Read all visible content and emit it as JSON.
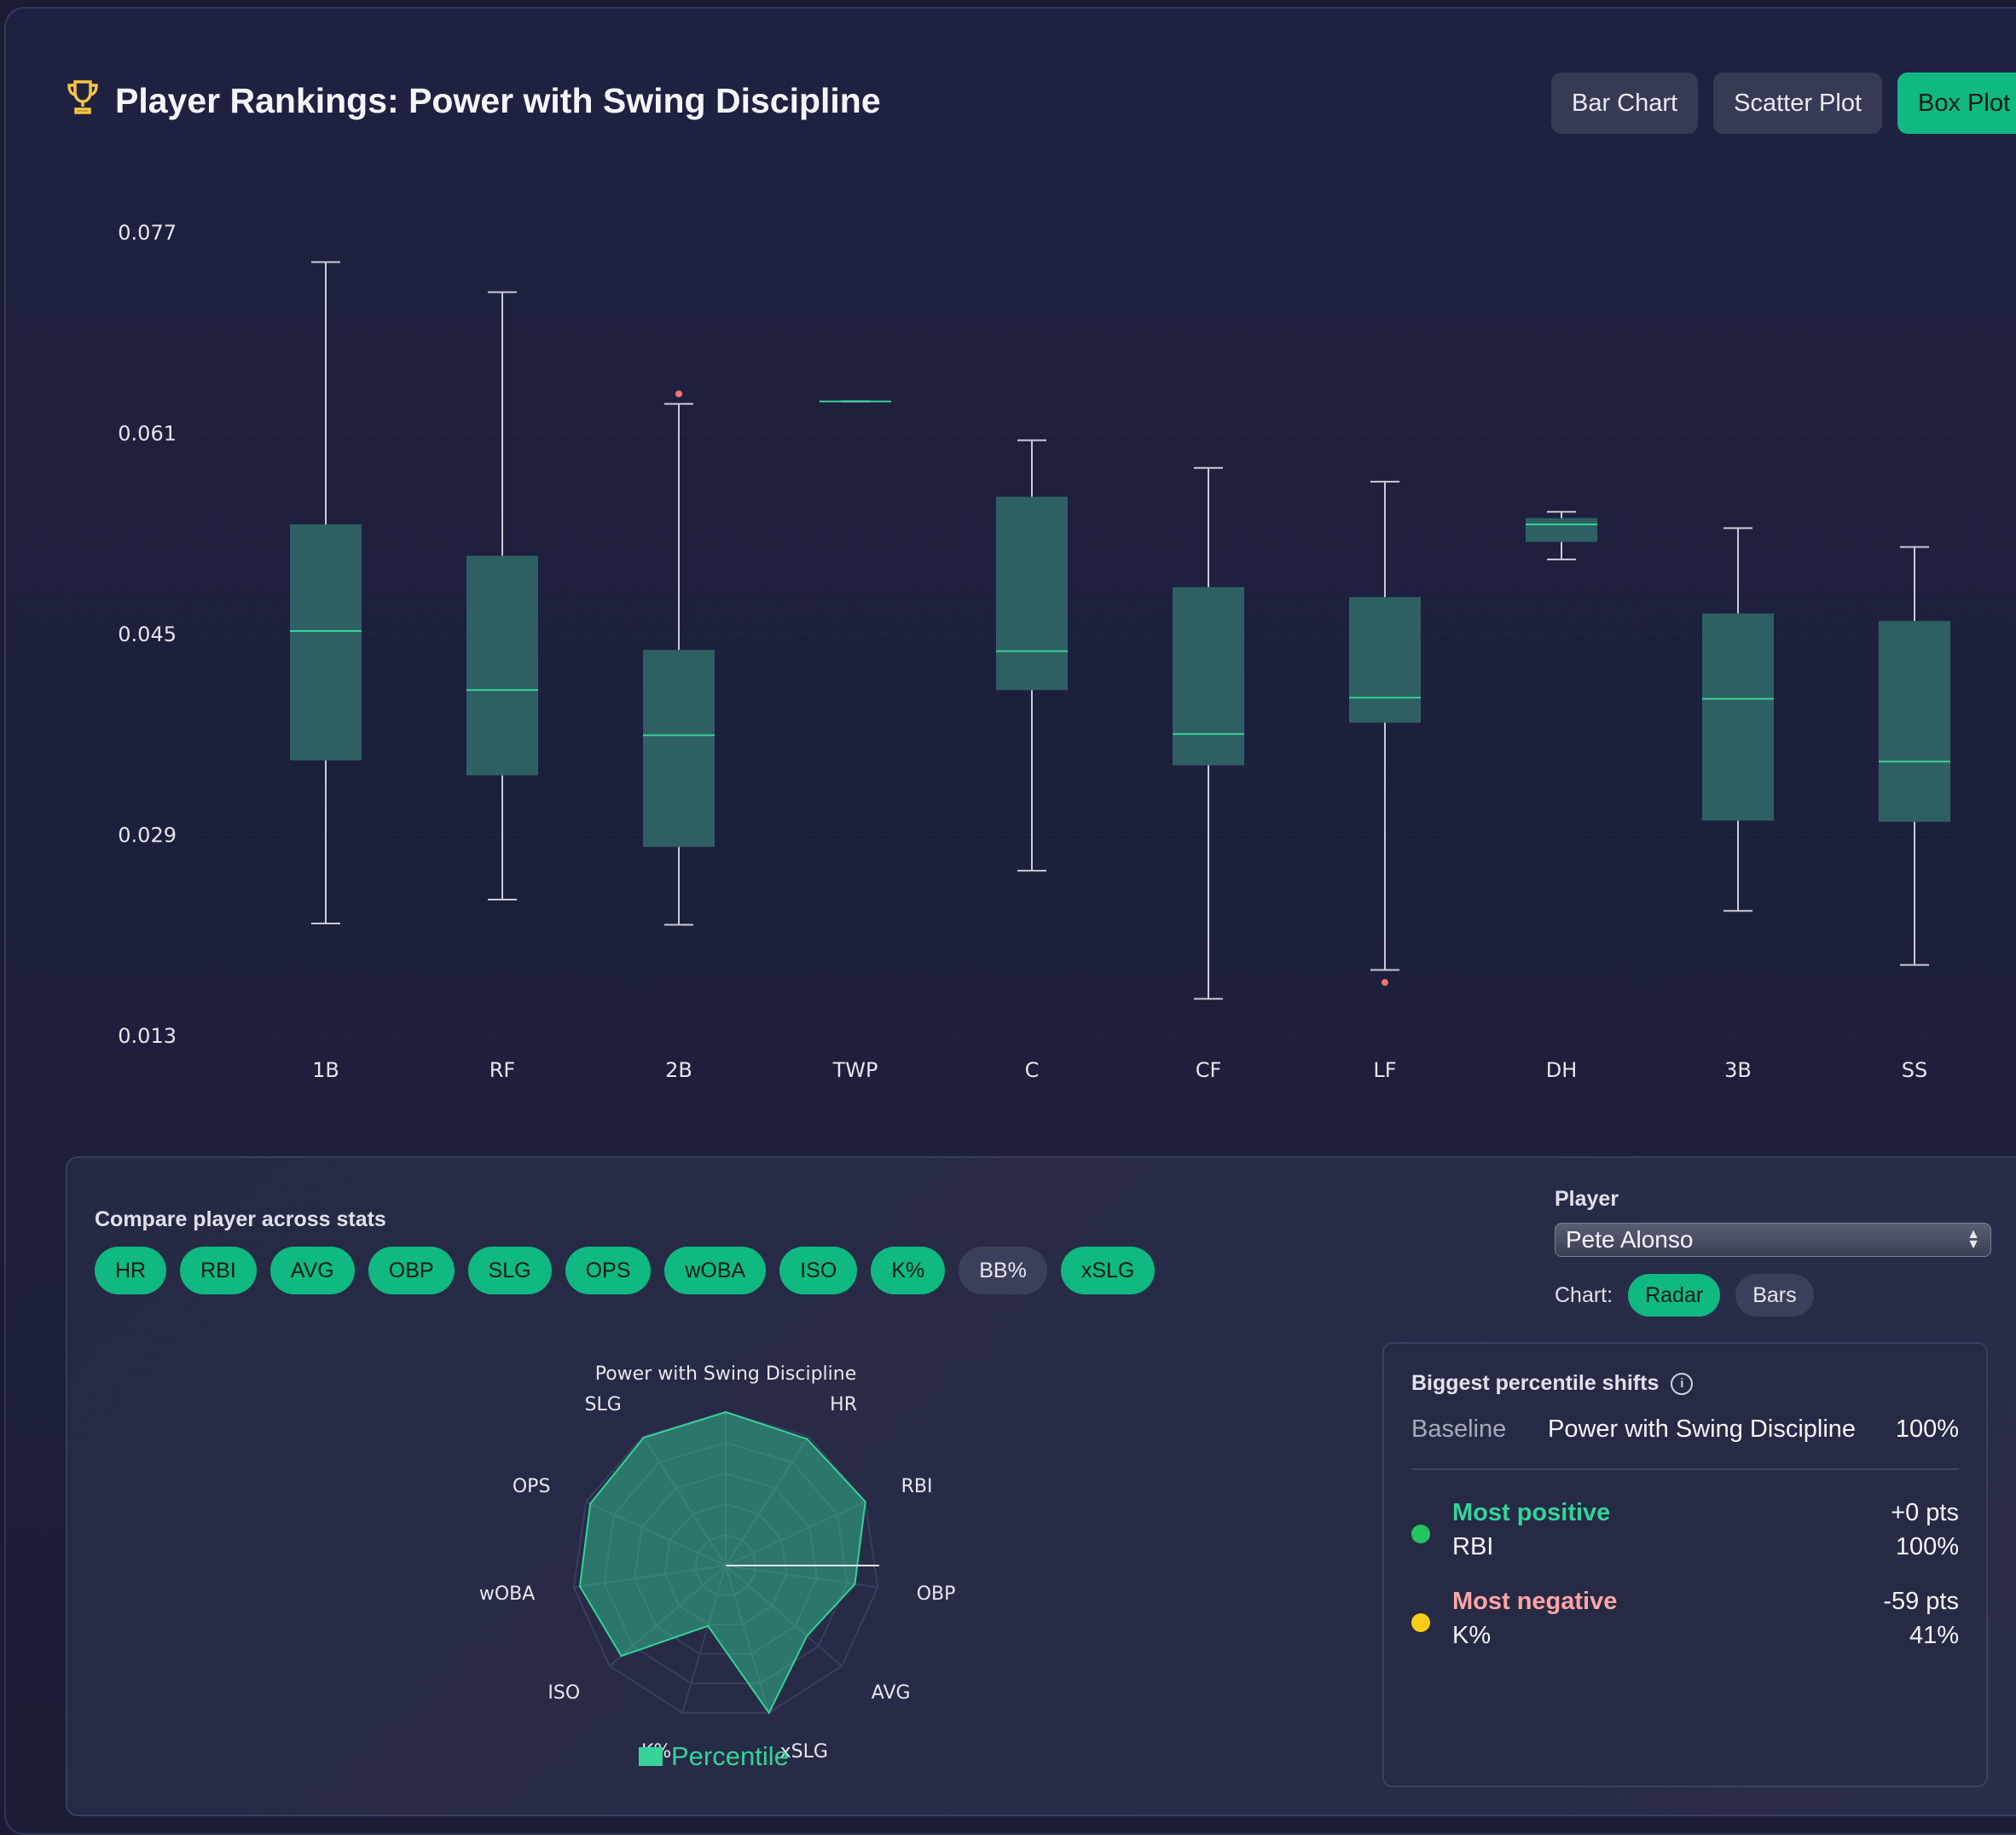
{
  "header": {
    "title": "Player Rankings: Power with Swing Discipline",
    "trophy_icon": "trophy-icon",
    "view_buttons": [
      {
        "label": "Bar Chart",
        "active": false
      },
      {
        "label": "Scatter Plot",
        "active": false
      },
      {
        "label": "Box Plot",
        "active": true
      }
    ]
  },
  "colors": {
    "accent": "#10b981",
    "box_fill": "#2e6063",
    "median_line": "#34d399",
    "whisker": "#c9cbd8",
    "outlier": "#f87171",
    "positive_dot": "#22c55e",
    "negative_dot": "#facc15",
    "positive_text": "#34d399",
    "negative_text": "#fca5a5"
  },
  "chart_data": [
    {
      "type": "box",
      "title": "",
      "y_ticks": [
        "0.077",
        "0.061",
        "0.045",
        "0.029",
        "0.013"
      ],
      "ylim": [
        0.013,
        0.077
      ],
      "categories": [
        "1B",
        "RF",
        "2B",
        "TWP",
        "C",
        "CF",
        "LF",
        "DH",
        "3B",
        "SS"
      ],
      "boxes": [
        {
          "category": "1B",
          "min": 0.0219,
          "q1": 0.0349,
          "median": 0.0452,
          "q3": 0.0537,
          "max": 0.0746,
          "outliers": []
        },
        {
          "category": "RF",
          "min": 0.0238,
          "q1": 0.0337,
          "median": 0.0405,
          "q3": 0.0512,
          "max": 0.0722,
          "outliers": []
        },
        {
          "category": "2B",
          "min": 0.0218,
          "q1": 0.028,
          "median": 0.0369,
          "q3": 0.0437,
          "max": 0.0633,
          "outliers": [
            0.0641
          ]
        },
        {
          "category": "TWP",
          "min": 0.0635,
          "q1": 0.0635,
          "median": 0.0635,
          "q3": 0.0635,
          "max": 0.0635,
          "outliers": []
        },
        {
          "category": "C",
          "min": 0.0261,
          "q1": 0.0405,
          "median": 0.0436,
          "q3": 0.0559,
          "max": 0.0604,
          "outliers": []
        },
        {
          "category": "CF",
          "min": 0.0159,
          "q1": 0.0345,
          "median": 0.037,
          "q3": 0.0487,
          "max": 0.0582,
          "outliers": []
        },
        {
          "category": "LF",
          "min": 0.0182,
          "q1": 0.0379,
          "median": 0.0399,
          "q3": 0.0479,
          "max": 0.0571,
          "outliers": [
            0.0172
          ]
        },
        {
          "category": "DH",
          "min": 0.0509,
          "q1": 0.0523,
          "median": 0.0537,
          "q3": 0.0542,
          "max": 0.0547,
          "outliers": []
        },
        {
          "category": "3B",
          "min": 0.0229,
          "q1": 0.0301,
          "median": 0.0398,
          "q3": 0.0466,
          "max": 0.0534,
          "outliers": []
        },
        {
          "category": "SS",
          "min": 0.0186,
          "q1": 0.03,
          "median": 0.0348,
          "q3": 0.046,
          "max": 0.0519,
          "outliers": []
        }
      ]
    },
    {
      "type": "radar",
      "title": "Power with Swing Discipline",
      "axes": [
        "Power with Swing Discipline",
        "HR",
        "RBI",
        "OBP",
        "AVG",
        "xSLG",
        "K%",
        "ISO",
        "wOBA",
        "OPS",
        "SLG"
      ],
      "series": [
        {
          "name": "Percentile",
          "values": [
            100,
            98,
            100,
            85,
            70,
            100,
            41,
            90,
            96,
            97,
            99
          ]
        }
      ],
      "range": [
        0,
        100
      ]
    }
  ],
  "compare": {
    "label": "Compare player across stats",
    "chips": [
      {
        "label": "HR",
        "on": true
      },
      {
        "label": "RBI",
        "on": true
      },
      {
        "label": "AVG",
        "on": true
      },
      {
        "label": "OBP",
        "on": true
      },
      {
        "label": "SLG",
        "on": true
      },
      {
        "label": "OPS",
        "on": true
      },
      {
        "label": "wOBA",
        "on": true
      },
      {
        "label": "ISO",
        "on": true
      },
      {
        "label": "K%",
        "on": true
      },
      {
        "label": "BB%",
        "on": false
      },
      {
        "label": "xSLG",
        "on": true
      }
    ]
  },
  "player": {
    "label": "Player",
    "selected": "Pete Alonso",
    "chart_label": "Chart:",
    "chart_options": [
      {
        "label": "Radar",
        "active": true
      },
      {
        "label": "Bars",
        "active": false
      }
    ]
  },
  "radar": {
    "legend": "Percentile"
  },
  "shifts": {
    "title": "Biggest percentile shifts",
    "info_icon": "info-icon",
    "baseline_label": "Baseline",
    "baseline_stat": "Power with Swing Discipline",
    "baseline_value": "100%",
    "positive": {
      "label": "Most positive",
      "pts": "+0 pts",
      "stat": "RBI",
      "pct": "100%"
    },
    "negative": {
      "label": "Most negative",
      "pts": "-59 pts",
      "stat": "K%",
      "pct": "41%"
    }
  }
}
